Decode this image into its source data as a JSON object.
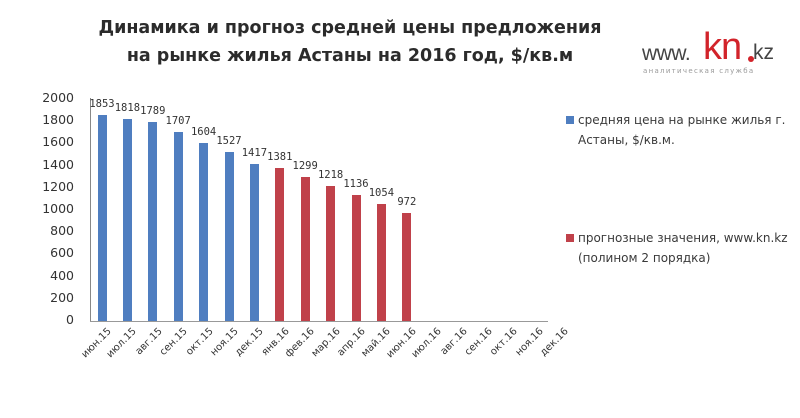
{
  "title": {
    "line1": "Динамика и прогноз средней цены предложения",
    "line2": "на рынке жилья Астаны на 2016 год, $/кв.м"
  },
  "logo": {
    "www": "www.",
    "kn": "kn",
    "kz": "kz",
    "subtitle": "аналитическая служба"
  },
  "colors": {
    "actual": "#4f7ec0",
    "forecast": "#c0414a"
  },
  "legend": {
    "actual": "средняя цена на рынке жилья г. Астаны, $/кв.м.",
    "forecast": "прогнозные значения, www.kn.kz  (полином 2 порядка)"
  },
  "chart_data": {
    "type": "bar",
    "title": "Динамика и прогноз средней цены предложения на рынке жилья Астаны на 2016 год, $/кв.м",
    "xlabel": "",
    "ylabel": "",
    "ylim": [
      0,
      2000
    ],
    "yticks": [
      0,
      200,
      400,
      600,
      800,
      1000,
      1200,
      1400,
      1600,
      1800,
      2000
    ],
    "grid": false,
    "legend_position": "right",
    "categories": [
      "июн.15",
      "июл.15",
      "авг.15",
      "сен.15",
      "окт.15",
      "ноя.15",
      "дек.15",
      "янв.16",
      "фев.16",
      "мар.16",
      "апр.16",
      "май.16",
      "июн.16",
      "июл.16",
      "авг.16",
      "сен.16",
      "окт.16",
      "ноя.16",
      "дек.16"
    ],
    "series": [
      {
        "name": "средняя цена на рынке жилья г. Астаны, $/кв.м.",
        "color": "#4f7ec0",
        "values": [
          1853,
          1818,
          1789,
          1707,
          1604,
          1527,
          1417,
          null,
          null,
          null,
          null,
          null,
          null,
          null,
          null,
          null,
          null,
          null,
          null
        ]
      },
      {
        "name": "прогнозные значения, www.kn.kz (полином 2 порядка)",
        "color": "#c0414a",
        "values": [
          null,
          null,
          null,
          null,
          null,
          null,
          null,
          1381,
          1299,
          1218,
          1136,
          1054,
          972,
          null,
          null,
          null,
          null,
          null,
          null
        ]
      }
    ]
  }
}
